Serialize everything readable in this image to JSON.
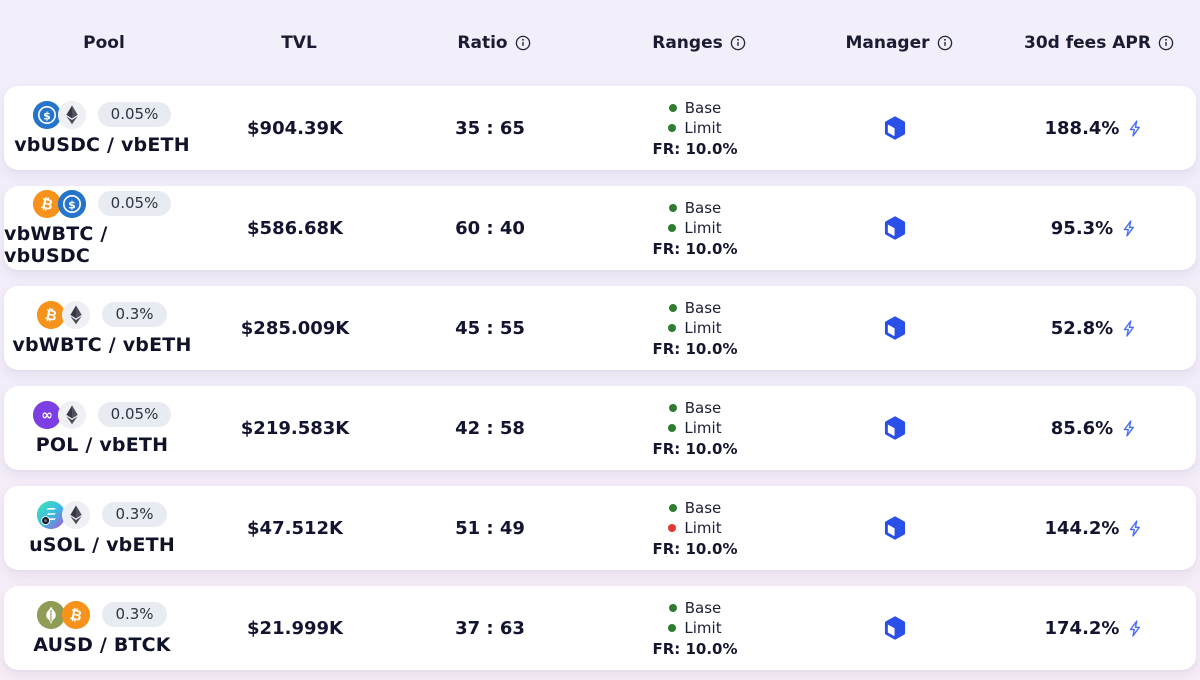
{
  "columns": [
    {
      "label": "Pool",
      "has_info": false
    },
    {
      "label": "TVL",
      "has_info": false
    },
    {
      "label": "Ratio",
      "has_info": true
    },
    {
      "label": "Ranges",
      "has_info": true
    },
    {
      "label": "Manager",
      "has_info": true
    },
    {
      "label": "30d fees APR",
      "has_info": true
    }
  ],
  "rows": [
    {
      "pool_name": "vbUSDC / vbETH",
      "fee_tier": "0.05%",
      "tokens": [
        "usdc",
        "eth"
      ],
      "tvl": "$904.39K",
      "ratio": "35 : 65",
      "ranges": {
        "base_label": "Base",
        "base_color": "green",
        "limit_label": "Limit",
        "limit_color": "green",
        "fr": "FR: 10.0%"
      },
      "apr": "188.4%"
    },
    {
      "pool_name": "vbWBTC / vbUSDC",
      "fee_tier": "0.05%",
      "tokens": [
        "btc",
        "usdc"
      ],
      "tvl": "$586.68K",
      "ratio": "60 : 40",
      "ranges": {
        "base_label": "Base",
        "base_color": "green",
        "limit_label": "Limit",
        "limit_color": "green",
        "fr": "FR: 10.0%"
      },
      "apr": "95.3%"
    },
    {
      "pool_name": "vbWBTC / vbETH",
      "fee_tier": "0.3%",
      "tokens": [
        "btc",
        "eth"
      ],
      "tvl": "$285.009K",
      "ratio": "45 : 55",
      "ranges": {
        "base_label": "Base",
        "base_color": "green",
        "limit_label": "Limit",
        "limit_color": "green",
        "fr": "FR: 10.0%"
      },
      "apr": "52.8%"
    },
    {
      "pool_name": "POL / vbETH",
      "fee_tier": "0.05%",
      "tokens": [
        "pol",
        "eth"
      ],
      "tvl": "$219.583K",
      "ratio": "42 : 58",
      "ranges": {
        "base_label": "Base",
        "base_color": "green",
        "limit_label": "Limit",
        "limit_color": "green",
        "fr": "FR: 10.0%"
      },
      "apr": "85.6%"
    },
    {
      "pool_name": "uSOL / vbETH",
      "fee_tier": "0.3%",
      "tokens": [
        "usol",
        "eth"
      ],
      "tvl": "$47.512K",
      "ratio": "51 : 49",
      "ranges": {
        "base_label": "Base",
        "base_color": "green",
        "limit_label": "Limit",
        "limit_color": "red",
        "fr": "FR: 10.0%"
      },
      "apr": "144.2%"
    },
    {
      "pool_name": "AUSD / BTCK",
      "fee_tier": "0.3%",
      "tokens": [
        "ausd",
        "btc"
      ],
      "tvl": "$21.999K",
      "ratio": "37 : 63",
      "ranges": {
        "base_label": "Base",
        "base_color": "green",
        "limit_label": "Limit",
        "limit_color": "green",
        "fr": "FR: 10.0%"
      },
      "apr": "174.2%"
    }
  ],
  "status_colors": {
    "green": "#2e7d32",
    "red": "#e0392f"
  },
  "accent_colors": {
    "manager_cube": "#2b50e8",
    "lightning": "#4a6cfb"
  }
}
